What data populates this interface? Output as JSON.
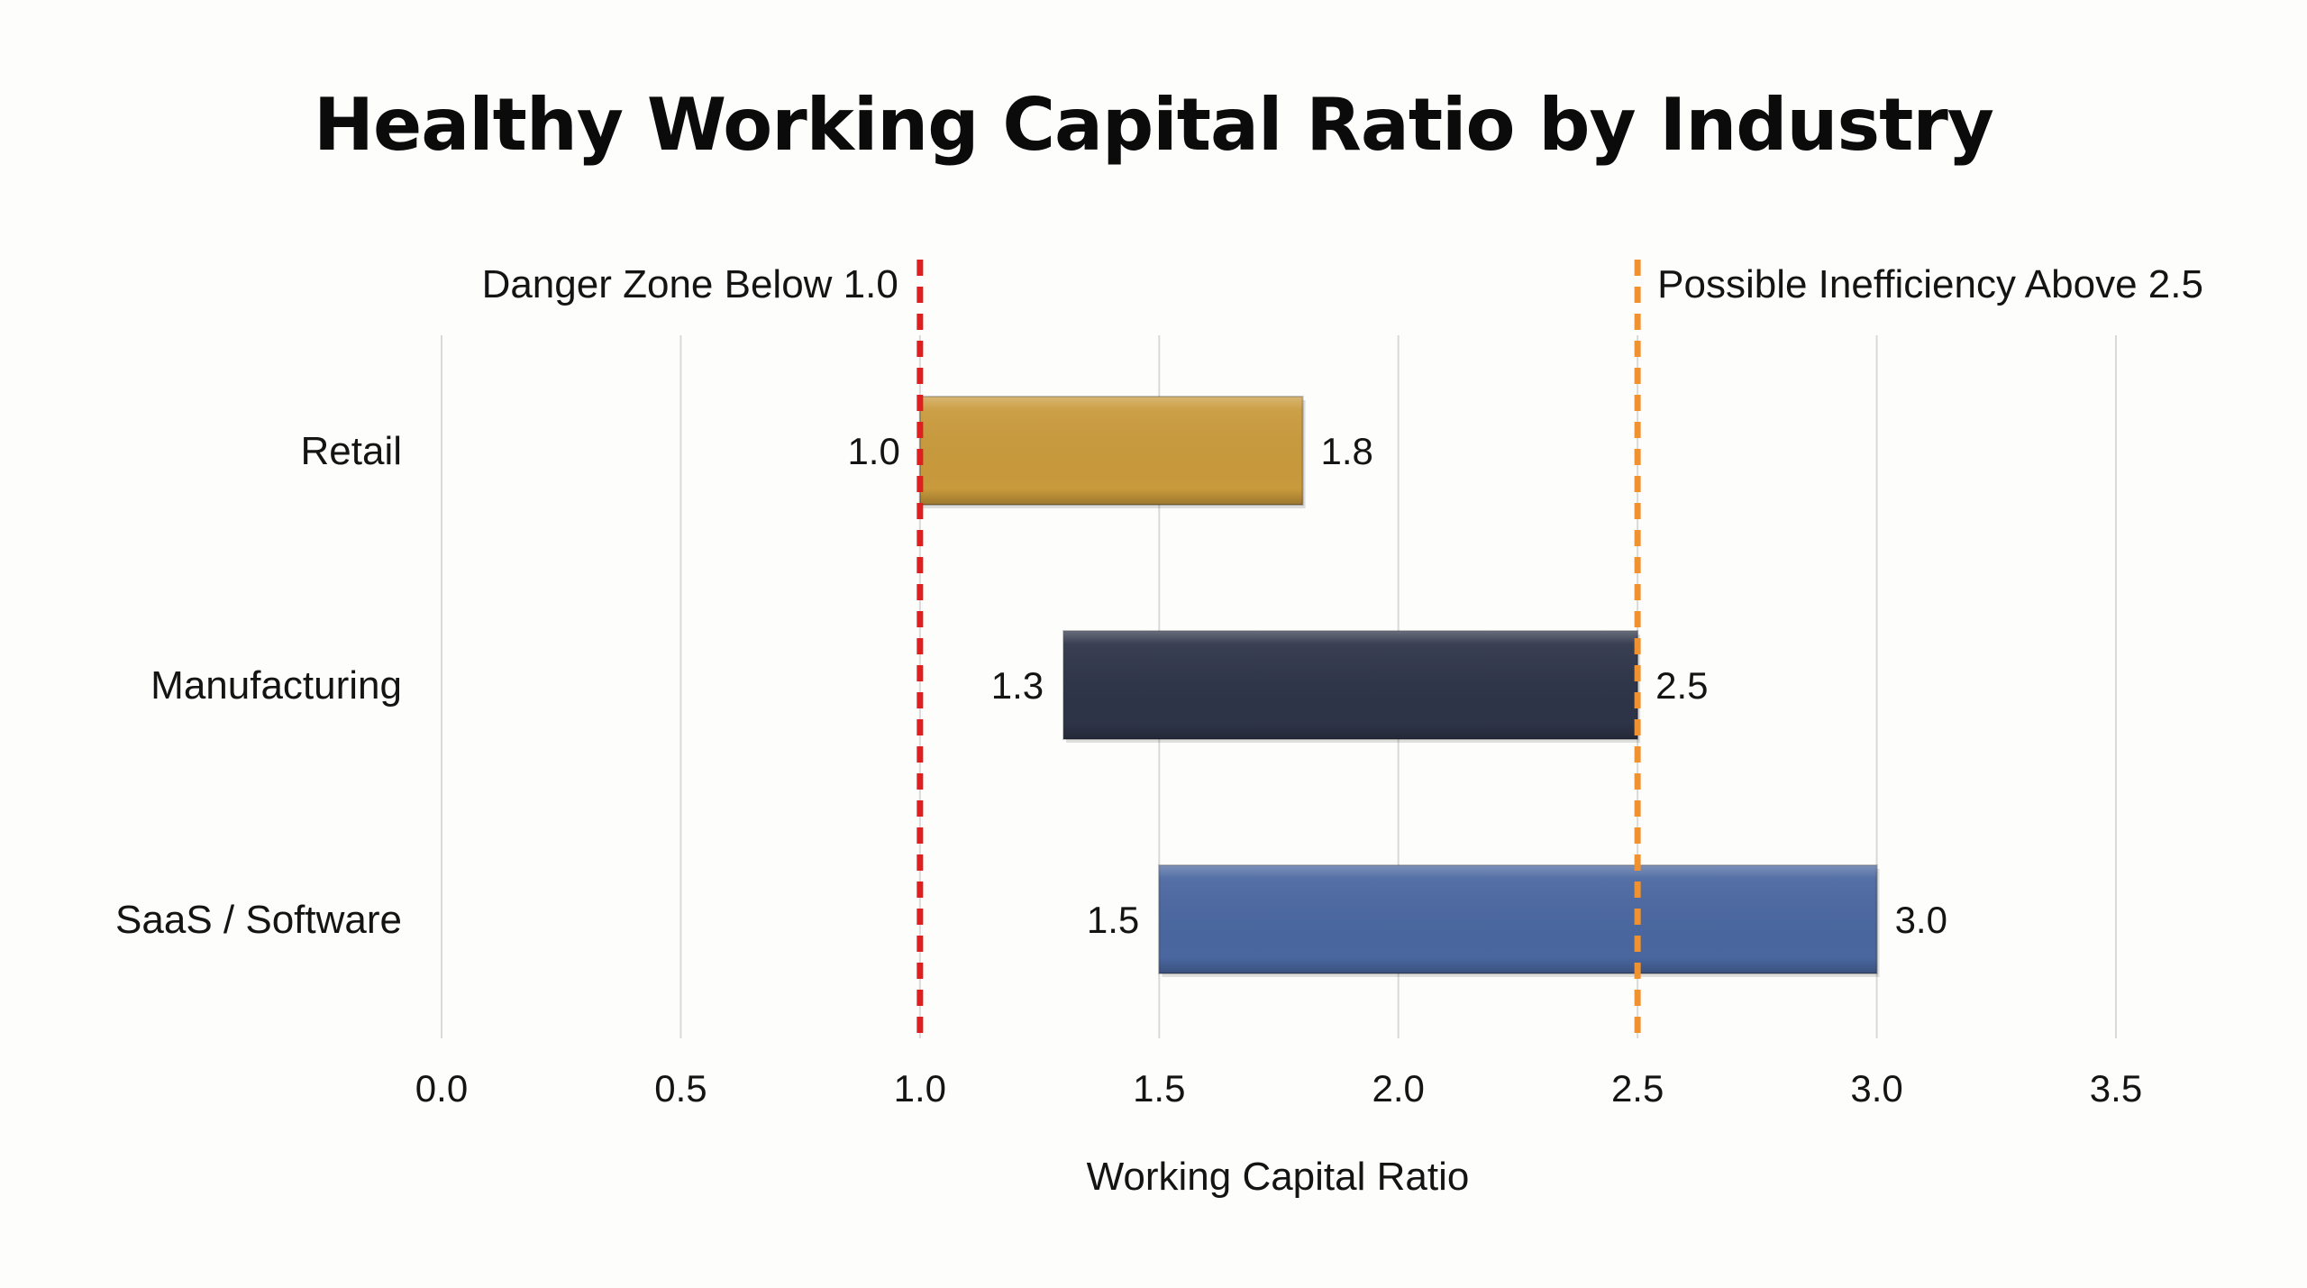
{
  "chart_data": {
    "type": "bar",
    "orientation": "horizontal",
    "title": "Healthy Working Capital Ratio by Industry",
    "xlabel": "Working Capital Ratio",
    "ylabel": "",
    "xlim": [
      0,
      3.5
    ],
    "x_ticks": [
      "0.0",
      "0.5",
      "1.0",
      "1.5",
      "2.0",
      "2.5",
      "3.0",
      "3.5"
    ],
    "grid": "vertical gridlines on",
    "categories": [
      "Retail",
      "Manufacturing",
      "SaaS / Software"
    ],
    "ranges": [
      {
        "category": "Retail",
        "low": 1.0,
        "high": 1.8,
        "low_label": "1.0",
        "high_label": "1.8",
        "color": "#c99a3c"
      },
      {
        "category": "Manufacturing",
        "low": 1.3,
        "high": 2.5,
        "low_label": "1.3",
        "high_label": "2.5",
        "color": "#2e3448"
      },
      {
        "category": "SaaS / Software",
        "low": 1.5,
        "high": 3.0,
        "low_label": "1.5",
        "high_label": "3.0",
        "color": "#4a67a0"
      }
    ],
    "reference_lines": [
      {
        "value": 1.0,
        "label": "Danger Zone Below 1.0",
        "color": "#dd1f1f",
        "label_side": "left"
      },
      {
        "value": 2.5,
        "label": "Possible Inefficiency Above 2.5",
        "color": "#f0922f",
        "label_side": "right"
      }
    ]
  }
}
